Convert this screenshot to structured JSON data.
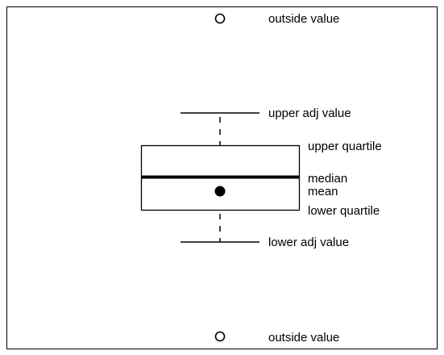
{
  "diagram": {
    "colors": {
      "stroke": "#000000",
      "background": "#ffffff"
    },
    "labels": {
      "outside_top": "outside value",
      "upper_adj": "upper adj value",
      "upper_quartile": "upper quartile",
      "median": "median",
      "mean": "mean",
      "lower_quartile": "lower quartile",
      "lower_adj": "lower adj value",
      "outside_bottom": "outside value"
    }
  }
}
